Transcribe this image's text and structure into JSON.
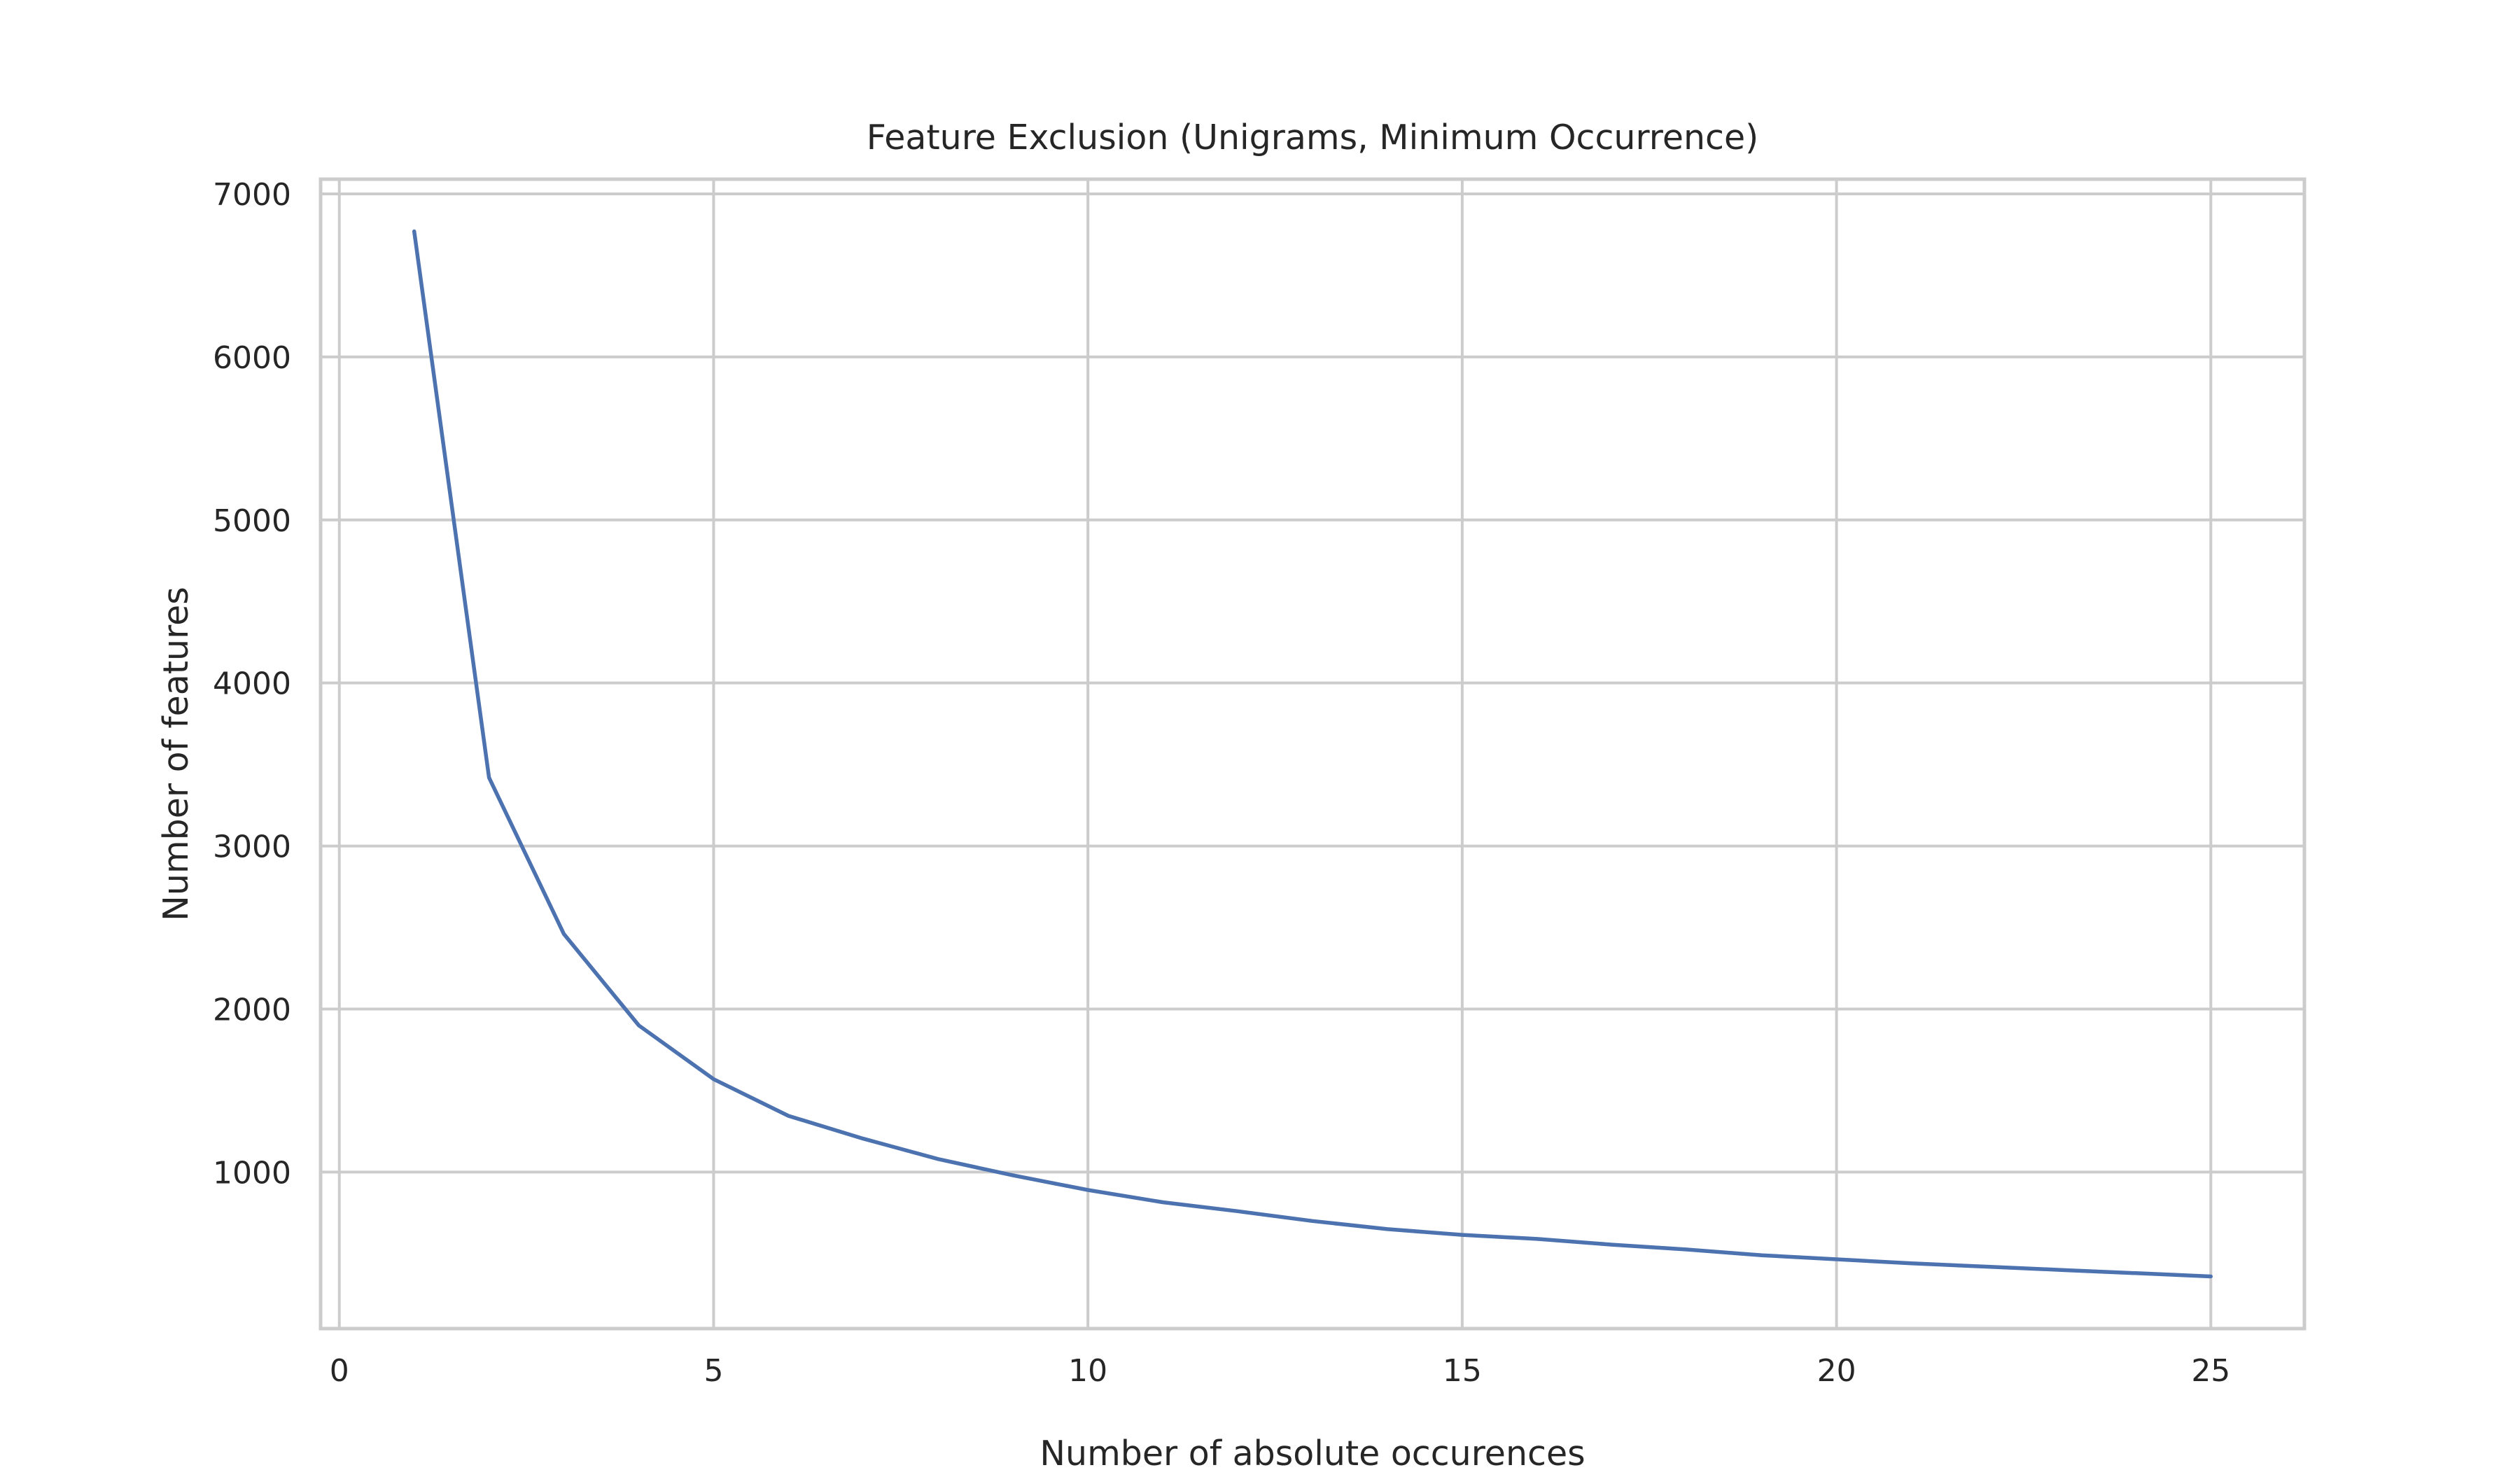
{
  "chart_data": {
    "type": "line",
    "title": "Feature Exclusion (Unigrams, Minimum Occurrence)",
    "xlabel": "Number of absolute occurences",
    "ylabel": "Number of features",
    "xlim": [
      -0.25,
      26.25
    ],
    "ylim": [
      40,
      7090
    ],
    "xticks": [
      0,
      5,
      10,
      15,
      20,
      25
    ],
    "yticks": [
      1000,
      2000,
      3000,
      4000,
      5000,
      6000,
      7000
    ],
    "grid": true,
    "series": [
      {
        "color": "#4c72b0",
        "x": [
          1,
          2,
          3,
          4,
          5,
          6,
          7,
          8,
          9,
          10,
          11,
          12,
          13,
          14,
          15,
          16,
          17,
          18,
          19,
          20,
          21,
          22,
          23,
          24,
          25
        ],
        "y": [
          6770,
          3420,
          2460,
          1900,
          1570,
          1345,
          1205,
          1080,
          980,
          890,
          815,
          760,
          700,
          650,
          615,
          590,
          555,
          525,
          490,
          465,
          440,
          420,
          400,
          380,
          360
        ]
      }
    ]
  }
}
